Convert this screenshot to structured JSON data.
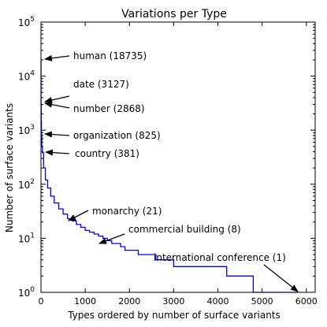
{
  "chart_data": {
    "type": "line",
    "title": "Variations per Type",
    "xlabel": "Types ordered by number of surface variants",
    "ylabel": "Number of surface variants",
    "xlim": [
      0,
      6200
    ],
    "ylim": [
      1,
      100000
    ],
    "yscale": "log",
    "grid": false,
    "line_color": "#0000ff",
    "x_ticks": [
      0,
      1000,
      2000,
      3000,
      4000,
      5000,
      6000
    ],
    "y_ticks": [
      {
        "value": 1,
        "base": "10",
        "exp": "0"
      },
      {
        "value": 10,
        "base": "10",
        "exp": "1"
      },
      {
        "value": 100,
        "base": "10",
        "exp": "2"
      },
      {
        "value": 1000,
        "base": "10",
        "exp": "3"
      },
      {
        "value": 10000,
        "base": "10",
        "exp": "4"
      },
      {
        "value": 100000,
        "base": "10",
        "exp": "5"
      }
    ],
    "series": [
      {
        "points": [
          [
            0,
            18735
          ],
          [
            1,
            3127
          ],
          [
            2,
            2868
          ],
          [
            5,
            1500
          ],
          [
            10,
            825
          ],
          [
            20,
            500
          ],
          [
            30,
            381
          ],
          [
            60,
            200
          ],
          [
            100,
            120
          ],
          [
            150,
            85
          ],
          [
            220,
            60
          ],
          [
            300,
            45
          ],
          [
            400,
            35
          ],
          [
            500,
            28
          ],
          [
            600,
            23
          ],
          [
            700,
            21
          ],
          [
            800,
            18
          ],
          [
            900,
            16
          ],
          [
            1000,
            14
          ],
          [
            1100,
            13
          ],
          [
            1200,
            12
          ],
          [
            1300,
            11
          ],
          [
            1400,
            10
          ],
          [
            1500,
            9
          ],
          [
            1600,
            8
          ],
          [
            1700,
            8
          ],
          [
            1800,
            7
          ],
          [
            1900,
            6
          ],
          [
            2000,
            6
          ],
          [
            2200,
            5
          ],
          [
            2600,
            4
          ],
          [
            3000,
            3
          ],
          [
            3600,
            3
          ],
          [
            4200,
            2
          ],
          [
            4800,
            2
          ],
          [
            4800,
            1
          ],
          [
            5800,
            1
          ]
        ]
      }
    ],
    "annotations": [
      {
        "text": "human (18735)",
        "x": 0,
        "y": 18735
      },
      {
        "text": "date (3127)",
        "x": 1,
        "y": 3127
      },
      {
        "text": "number (2868)",
        "x": 2,
        "y": 2868
      },
      {
        "text": "organization (825)",
        "x": 10,
        "y": 825
      },
      {
        "text": "country (381)",
        "x": 30,
        "y": 381
      },
      {
        "text": "monarchy (21)",
        "x": 700,
        "y": 21
      },
      {
        "text": "commercial building (8)",
        "x": 1250,
        "y": 8
      },
      {
        "text": "international conference (1)",
        "x": 5800,
        "y": 1
      }
    ]
  }
}
